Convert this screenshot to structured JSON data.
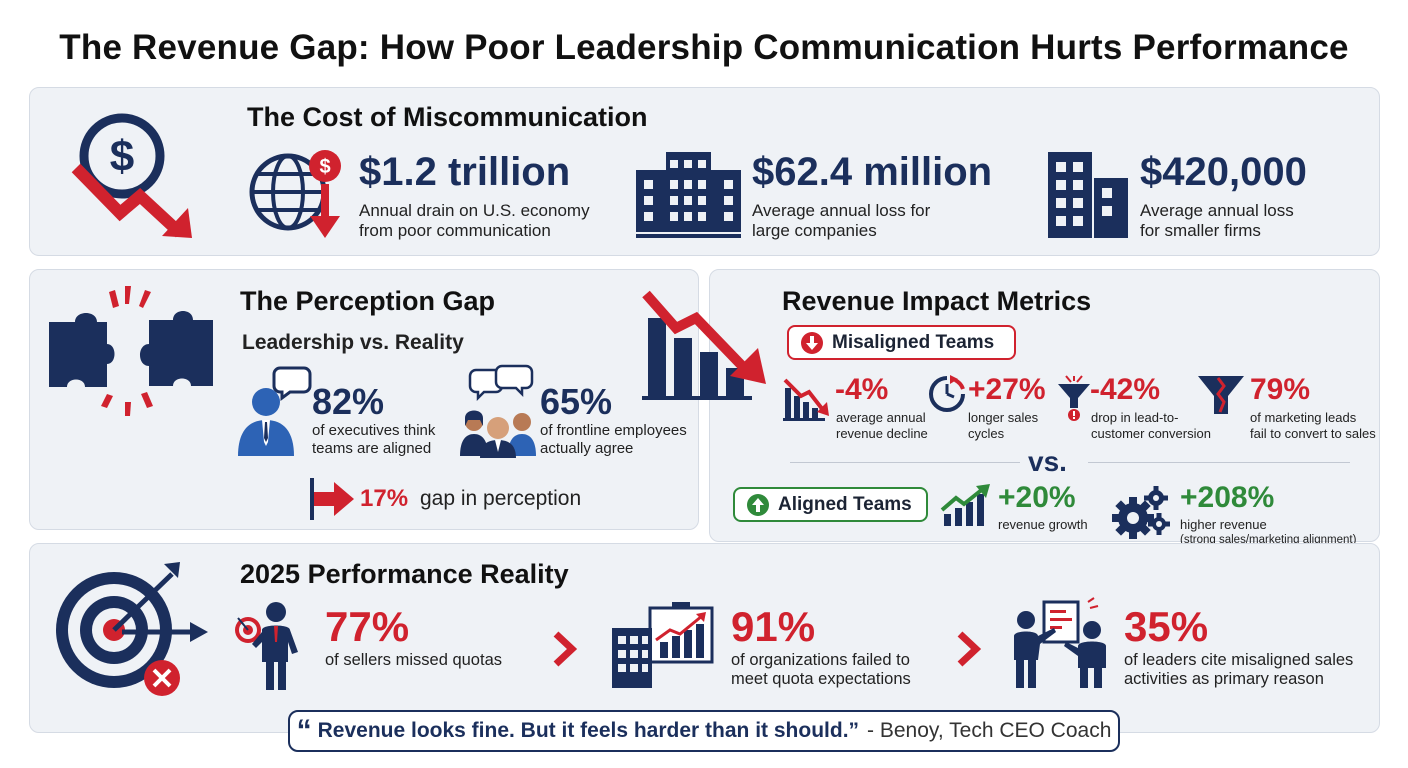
{
  "title": "The Revenue Gap: How Poor Leadership Communication Hurts Performance",
  "cost": {
    "heading": "The Cost of Miscommunication",
    "stats": [
      {
        "value": "$1.2 trillion",
        "desc1": "Annual drain on U.S. economy",
        "desc2": "from poor communication",
        "icon": "globe-dollar-down-icon"
      },
      {
        "value": "$62.4 million",
        "desc1": "Average annual loss for",
        "desc2": "large companies",
        "icon": "large-building-icon"
      },
      {
        "value": "$420,000",
        "desc1": "Average annual loss",
        "desc2": "for smaller firms",
        "icon": "small-building-icon"
      }
    ]
  },
  "perception": {
    "heading": "The Perception Gap",
    "subheading": "Leadership vs. Reality",
    "exec": {
      "value": "82%",
      "desc1": "of executives think",
      "desc2": "teams are aligned"
    },
    "frontline": {
      "value": "65%",
      "desc1": "of frontline employees",
      "desc2": "actually agree"
    },
    "gap": {
      "value": "17%",
      "label": "gap in perception"
    }
  },
  "revenue": {
    "heading": "Revenue Impact Metrics",
    "misaligned_label": "Misaligned Teams",
    "misaligned": [
      {
        "value": "-4%",
        "desc1": "average annual",
        "desc2": "revenue decline"
      },
      {
        "value": "+27%",
        "desc1": "longer sales",
        "desc2": "cycles"
      },
      {
        "value": "-42%",
        "desc1": "drop in lead-to-",
        "desc2": "customer conversion"
      },
      {
        "value": "79%",
        "desc1": "of marketing leads",
        "desc2": "fail to convert to sales"
      }
    ],
    "vs": "vs.",
    "aligned_label": "Aligned Teams",
    "aligned": [
      {
        "value": "+20%",
        "desc1": "revenue growth",
        "desc2": ""
      },
      {
        "value": "+208%",
        "desc1": "higher revenue",
        "desc2": "(strong sales/marketing alignment)"
      }
    ]
  },
  "performance": {
    "heading": "2025 Performance Reality",
    "stats": [
      {
        "value": "77%",
        "desc1": "of sellers missed quotas",
        "desc2": ""
      },
      {
        "value": "91%",
        "desc1": "of organizations failed to",
        "desc2": "meet quota expectations"
      },
      {
        "value": "35%",
        "desc1": "of leaders cite misaligned sales",
        "desc2": "activities as primary reason"
      }
    ]
  },
  "quote": {
    "mark": "“",
    "text": "Revenue looks fine. But it feels harder than it should.”",
    "author": "- Benoy, Tech CEO Coach"
  },
  "colors": {
    "navy": "#1b2f5c",
    "red": "#d0222e",
    "green": "#2f8a3a",
    "panel": "#eff2f6"
  }
}
